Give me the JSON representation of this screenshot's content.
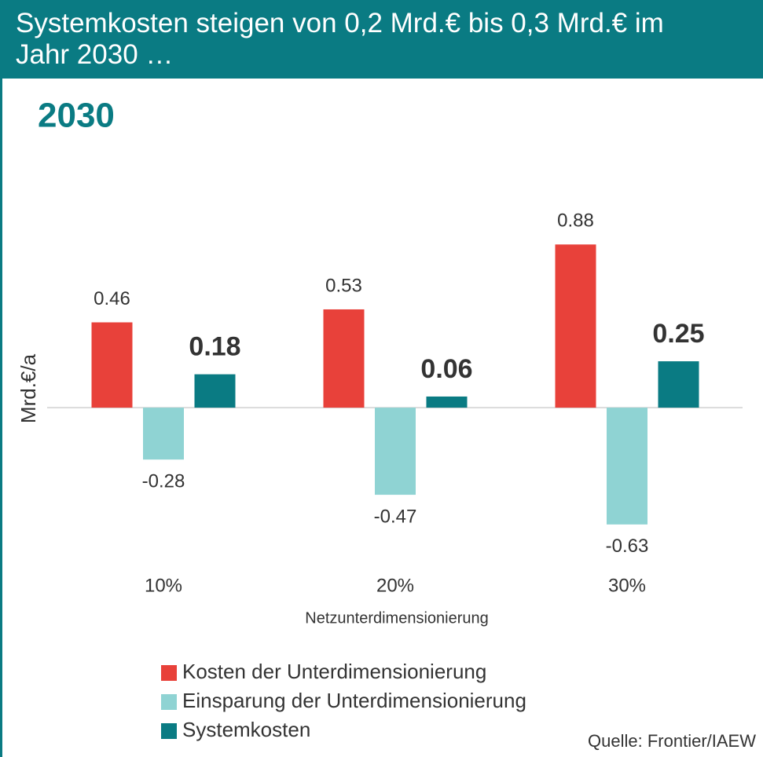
{
  "chart_data": {
    "type": "bar",
    "title": "Systemkosten steigen von 0,2 Mrd.€ bis 0,3 Mrd.€ im Jahr 2030 …",
    "subtitle": "2030",
    "categories": [
      "10%",
      "20%",
      "30%"
    ],
    "series": [
      {
        "name": "Kosten der Unterdimensionierung",
        "color": "#e8413a",
        "values": [
          0.46,
          0.53,
          0.88
        ]
      },
      {
        "name": "Einsparung der Unterdimensionierung",
        "color": "#8fd3d3",
        "values": [
          -0.28,
          -0.47,
          -0.63
        ]
      },
      {
        "name": "Systemkosten",
        "color": "#0a7b83",
        "values": [
          0.18,
          0.06,
          0.25
        ]
      }
    ],
    "x_label": "Netzunterdimensionierung",
    "y_label": "Mrd.€/a",
    "ylim": [
      -0.8,
      1.0
    ],
    "source": "Quelle: Frontier/IAEW"
  }
}
